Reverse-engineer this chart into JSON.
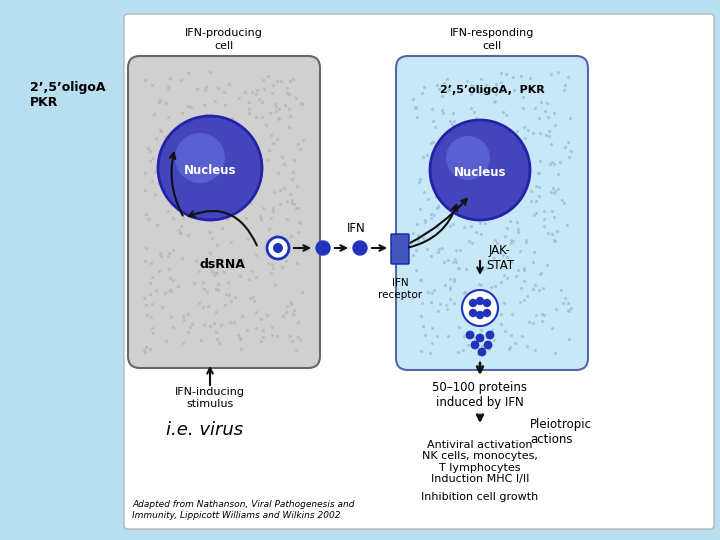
{
  "bg_color": "#b8dff0",
  "diagram_bg": "#ffffff",
  "cell1_fill": "#d0d0d0",
  "cell1_edge": "#666666",
  "cell2_fill": "#c8e8f8",
  "cell2_edge": "#5566aa",
  "nucleus_fill_center": "#6666dd",
  "nucleus_fill": "#4444bb",
  "nucleus_edge": "#2222aa",
  "dot_color": "#2233bb",
  "receptor_color": "#4455bb",
  "arrow_color": "#111111",
  "label_top_left_line1": "2’,5’oligoA",
  "label_top_left_line2": "PKR",
  "label_cell1_h1": "IFN-producing",
  "label_cell1_h2": "cell",
  "label_cell2_h1": "IFN-responding",
  "label_cell2_h2": "cell",
  "label_nucleus1": "Nucleus",
  "label_nucleus2": "Nucleus",
  "label_dsrna": "dsRNA",
  "label_ifn": "IFN",
  "label_ifn_receptor": "IFN\nreceptor",
  "label_jak_stat": "JAK-\nSTAT",
  "label_oligo_pkr": "2’,5’oligoA,  PKR",
  "label_ie_virus": "i.e. virus",
  "label_ifn_stimulus1": "IFN-inducing",
  "label_ifn_stimulus2": "stimulus",
  "label_proteins": "50–100 proteins\ninduced by IFN",
  "label_pleiotropic": "Pleiotropic\nactions",
  "label_antiviral": "Antiviral activation\nNK cells, monocytes,\nT lymphocytes\nInduction MHC I/II",
  "label_inhibition": "Inhibition cell growth",
  "label_adapted": "Adapted from Nathanson, Viral Pathogenesis and\nImmunity, Lippicott Williams and Wilkins 2002"
}
